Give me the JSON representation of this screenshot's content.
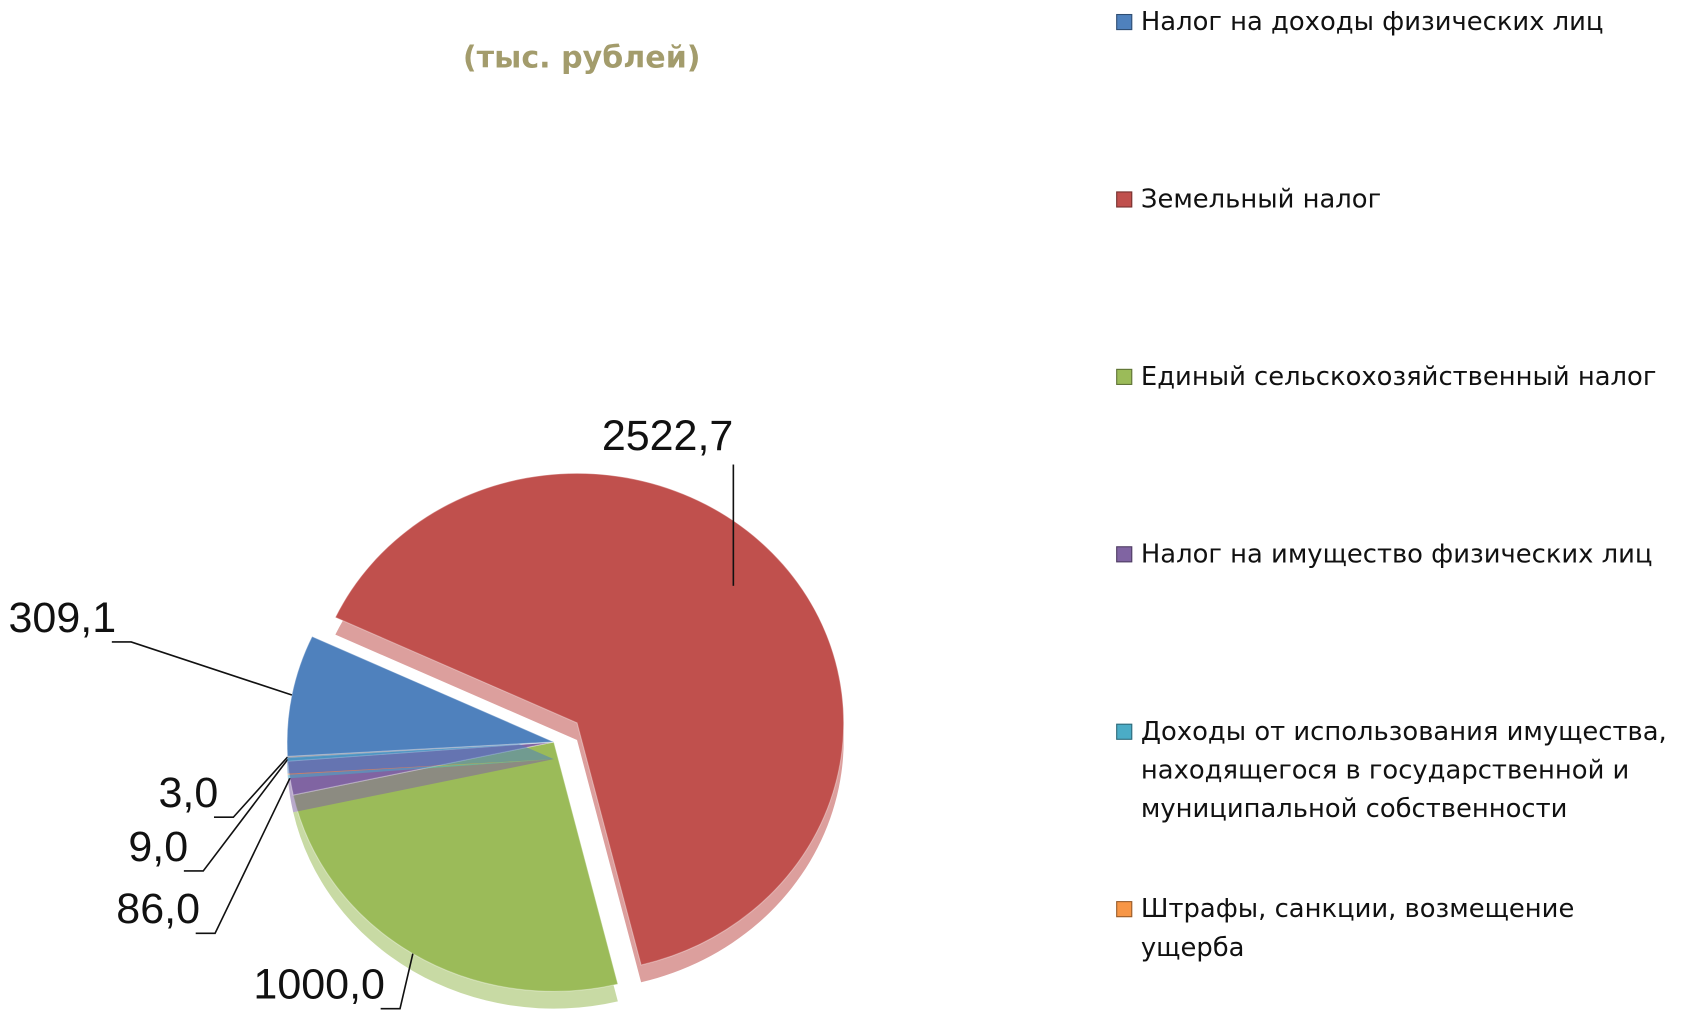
{
  "chart_data": {
    "type": "pie",
    "subtitle": "(тыс. рублей)",
    "series": [
      {
        "name": "Налог на доходы физических  лиц",
        "color": "#4f81bd",
        "values": [
          309.1
        ],
        "value_labels": [
          "309,1"
        ]
      },
      {
        "name": "Земельный налог",
        "color": "#c0504d",
        "values": [
          2522.7
        ],
        "value_labels": [
          "2522,7"
        ]
      },
      {
        "name": "Единый сельскохозяйственный налог",
        "color": "#9bbb59",
        "values": [
          1000.0
        ],
        "value_labels": [
          "1000,0"
        ]
      },
      {
        "name": "Налог на имущество физических  лиц",
        "color": "#8064a2",
        "values": [
          86.0
        ],
        "value_labels": [
          "86,0"
        ]
      },
      {
        "name": "Доходы от использования имущества, находящегося в государственной и муниципальной собственности",
        "color": "#4bacc6",
        "values": [
          9.0
        ],
        "value_labels": [
          "9,0"
        ]
      },
      {
        "name": "Штрафы, санкции, возмещение ущерба",
        "color": "#f79646",
        "values": [
          3.0
        ],
        "value_labels": [
          "3,0"
        ]
      }
    ],
    "legend": "right"
  }
}
